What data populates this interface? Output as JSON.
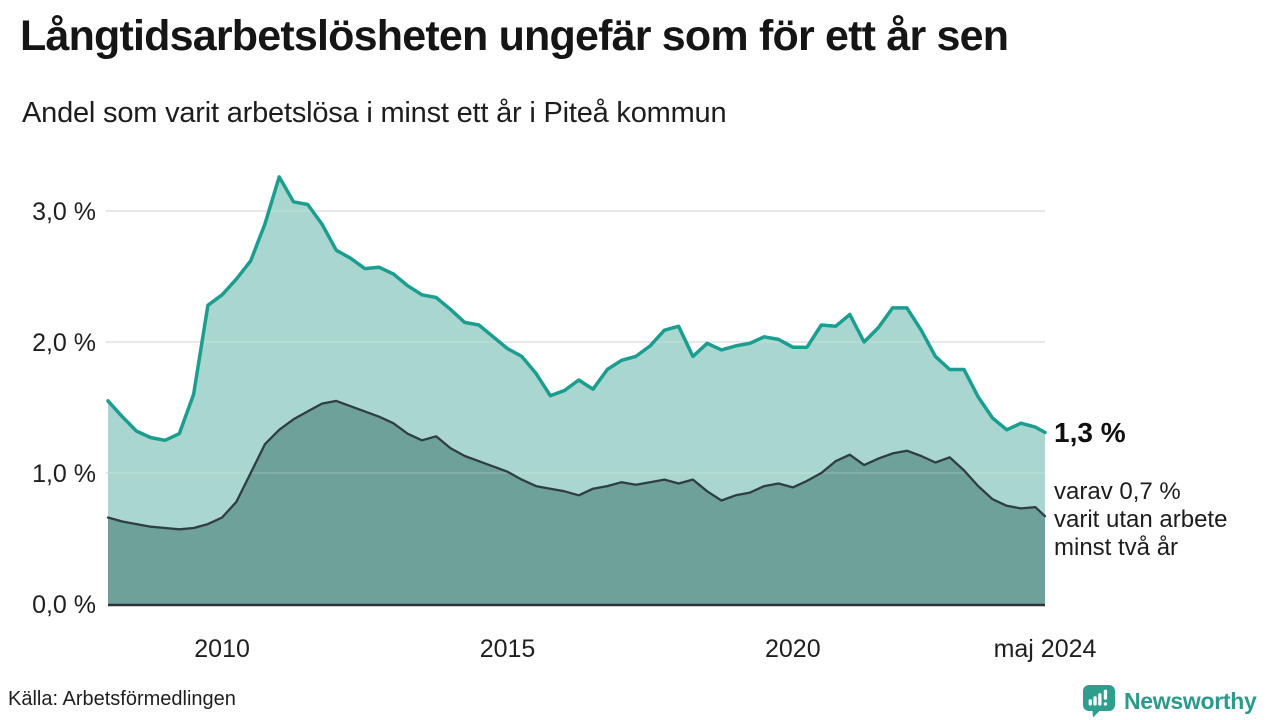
{
  "header": {
    "title": "Långtidsarbetslösheten ungefär som för ett år sen",
    "subtitle": "Andel som varit arbetslösa i minst ett år i Piteå kommun"
  },
  "chart_data": {
    "type": "area",
    "title": "Långtidsarbetslösheten ungefär som för ett år sen",
    "subtitle": "Andel som varit arbetslösa i minst ett år i Piteå kommun",
    "unit": "%",
    "xlabel": "",
    "ylabel": "",
    "grid": "horizontal",
    "legend_position": "none",
    "xlim": [
      2008.0,
      2024.42
    ],
    "ylim": [
      0,
      3.45
    ],
    "x": [
      2008.0,
      2008.25,
      2008.5,
      2008.75,
      2009.0,
      2009.25,
      2009.5,
      2009.75,
      2010.0,
      2010.25,
      2010.5,
      2010.75,
      2011.0,
      2011.25,
      2011.5,
      2011.75,
      2012.0,
      2012.25,
      2012.5,
      2012.75,
      2013.0,
      2013.25,
      2013.5,
      2013.75,
      2014.0,
      2014.25,
      2014.5,
      2014.75,
      2015.0,
      2015.25,
      2015.5,
      2015.75,
      2016.0,
      2016.25,
      2016.5,
      2016.75,
      2017.0,
      2017.25,
      2017.5,
      2017.75,
      2018.0,
      2018.25,
      2018.5,
      2018.75,
      2019.0,
      2019.25,
      2019.5,
      2019.75,
      2020.0,
      2020.25,
      2020.5,
      2020.75,
      2021.0,
      2021.25,
      2021.5,
      2021.75,
      2022.0,
      2022.25,
      2022.5,
      2022.75,
      2023.0,
      2023.25,
      2023.5,
      2023.75,
      2024.0,
      2024.25,
      2024.42
    ],
    "series": [
      {
        "name": "Andel arbetslösa minst ett år",
        "color": "#1b9e8f",
        "fill": "#a9d7cf",
        "end_value_label": "1,3 %",
        "values": [
          1.55,
          1.43,
          1.32,
          1.27,
          1.25,
          1.3,
          1.6,
          2.28,
          2.36,
          2.48,
          2.62,
          2.9,
          3.26,
          3.07,
          3.05,
          2.9,
          2.7,
          2.64,
          2.56,
          2.57,
          2.52,
          2.43,
          2.36,
          2.34,
          2.25,
          2.15,
          2.13,
          2.04,
          1.95,
          1.89,
          1.76,
          1.59,
          1.63,
          1.71,
          1.64,
          1.79,
          1.86,
          1.89,
          1.97,
          2.09,
          2.12,
          1.89,
          1.99,
          1.94,
          1.97,
          1.99,
          2.04,
          2.02,
          1.96,
          1.96,
          2.13,
          2.12,
          2.21,
          2.0,
          2.11,
          2.26,
          2.26,
          2.09,
          1.89,
          1.79,
          1.79,
          1.58,
          1.42,
          1.33,
          1.38,
          1.35,
          1.31
        ]
      },
      {
        "name": "Andel arbetslösa minst två år",
        "color": "#2f3e41",
        "fill": "#6fa19b",
        "end_value_label": "0,7 %",
        "values": [
          0.66,
          0.63,
          0.61,
          0.59,
          0.58,
          0.57,
          0.58,
          0.61,
          0.66,
          0.78,
          1.0,
          1.22,
          1.33,
          1.41,
          1.47,
          1.53,
          1.55,
          1.51,
          1.47,
          1.43,
          1.38,
          1.3,
          1.25,
          1.28,
          1.19,
          1.13,
          1.09,
          1.05,
          1.01,
          0.95,
          0.9,
          0.88,
          0.86,
          0.83,
          0.88,
          0.9,
          0.93,
          0.91,
          0.93,
          0.95,
          0.92,
          0.95,
          0.86,
          0.79,
          0.83,
          0.85,
          0.9,
          0.92,
          0.89,
          0.94,
          1.0,
          1.09,
          1.14,
          1.06,
          1.11,
          1.15,
          1.17,
          1.13,
          1.08,
          1.12,
          1.02,
          0.9,
          0.8,
          0.75,
          0.73,
          0.74,
          0.67
        ]
      }
    ],
    "yticks": [
      {
        "value": 0,
        "label": "0,0 %"
      },
      {
        "value": 1,
        "label": "1,0 %"
      },
      {
        "value": 2,
        "label": "2,0 %"
      },
      {
        "value": 3,
        "label": "3,0 %"
      }
    ],
    "xticks": [
      {
        "value": 2010,
        "label": "2010"
      },
      {
        "value": 2015,
        "label": "2015"
      },
      {
        "value": 2020,
        "label": "2020"
      },
      {
        "value": 2024.42,
        "label": "maj 2024"
      }
    ],
    "colors": {
      "grid": "#e4e4e8",
      "axis": "#2f3235",
      "background": "#ffffff"
    }
  },
  "annotation": {
    "value": "1,3 %",
    "detail": "varav 0,7 %\nvarit utan arbete\nminst två år"
  },
  "footer": {
    "source": "Källa: Arbetsförmedlingen",
    "logo_text": "Newsworthy",
    "logo_color": "#2a9a8b"
  }
}
